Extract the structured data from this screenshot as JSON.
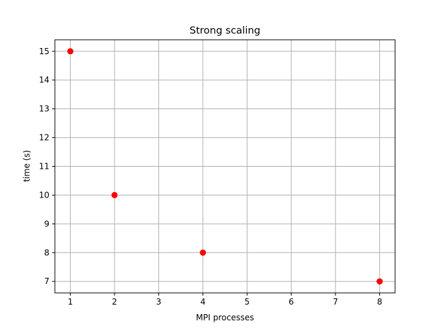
{
  "chart_data": {
    "type": "scatter",
    "title": "Strong scaling",
    "xlabel": "MPI processes",
    "ylabel": "time (s)",
    "xlim": [
      0.65,
      8.35
    ],
    "ylim": [
      6.6,
      15.4
    ],
    "xticks": [
      1,
      2,
      3,
      4,
      5,
      6,
      7,
      8
    ],
    "yticks": [
      7,
      8,
      9,
      10,
      11,
      12,
      13,
      14,
      15
    ],
    "grid": true,
    "series": [
      {
        "x": [
          1,
          2,
          4,
          8
        ],
        "y": [
          15,
          10,
          8,
          7
        ],
        "color": "#ff0000",
        "marker": "circle"
      }
    ]
  }
}
